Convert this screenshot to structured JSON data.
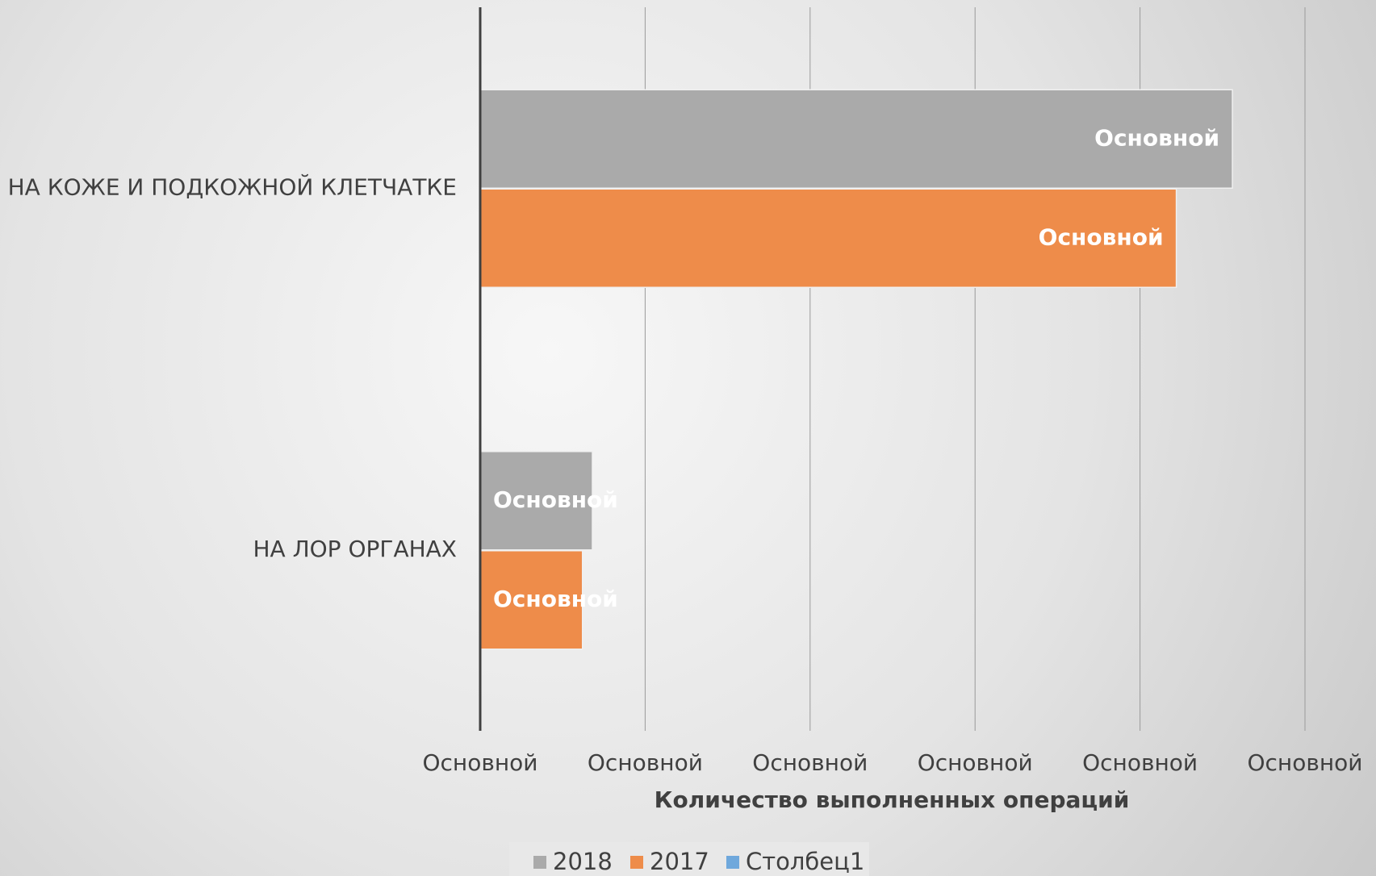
{
  "chart_data": {
    "type": "hbar",
    "x_label": "Количество выполненных операций",
    "categories": [
      "НА КОЖЕ И ПОДКОЖНОЙ КЛЕТЧАТКЕ",
      "НА ЛОР ОРГАНАХ"
    ],
    "series": [
      {
        "name": "2018",
        "color": "#aaaaaa",
        "values": [
          228,
          34
        ],
        "value_labels": [
          "Основной",
          "Основной"
        ]
      },
      {
        "name": "2017",
        "color": "#ee8c4a",
        "values": [
          211,
          31
        ],
        "value_labels": [
          "Основной",
          "Основной"
        ]
      },
      {
        "name": "Столбец1",
        "color": "#6fa8dc",
        "values": [
          null,
          null
        ]
      }
    ],
    "xlim": [
      0,
      250
    ],
    "xticks": [
      {
        "value": 0,
        "label": "Основной"
      },
      {
        "value": 50,
        "label": "Основной"
      },
      {
        "value": 100,
        "label": "Основной"
      },
      {
        "value": 150,
        "label": "Основной"
      },
      {
        "value": 200,
        "label": "Основной"
      },
      {
        "value": 250,
        "label": "Основной"
      }
    ],
    "grid": true,
    "legend": "bottom"
  }
}
